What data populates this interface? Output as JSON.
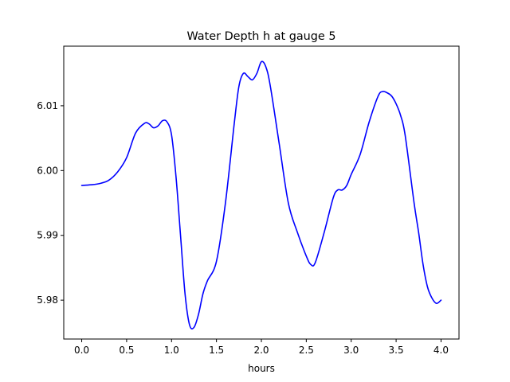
{
  "chart_data": {
    "type": "line",
    "title": "Water Depth h at gauge 5",
    "xlabel": "hours",
    "ylabel": "",
    "xlim": [
      -0.2,
      4.2
    ],
    "ylim": [
      5.974,
      6.0192
    ],
    "xticks": [
      0.0,
      0.5,
      1.0,
      1.5,
      2.0,
      2.5,
      3.0,
      3.5,
      4.0
    ],
    "xtick_labels": [
      "0.0",
      "0.5",
      "1.0",
      "1.5",
      "2.0",
      "2.5",
      "3.0",
      "3.5",
      "4.0"
    ],
    "yticks": [
      5.98,
      5.99,
      6.0,
      6.01
    ],
    "ytick_labels": [
      "5.98",
      "5.99",
      "6.00",
      "6.01"
    ],
    "grid": false,
    "series": [
      {
        "name": "",
        "color": "#0000ff",
        "x": [
          0.0,
          0.1,
          0.2,
          0.3,
          0.4,
          0.5,
          0.6,
          0.7,
          0.75,
          0.8,
          0.85,
          0.9,
          0.95,
          1.0,
          1.05,
          1.1,
          1.15,
          1.2,
          1.25,
          1.3,
          1.35,
          1.4,
          1.5,
          1.6,
          1.7,
          1.75,
          1.8,
          1.85,
          1.9,
          1.95,
          2.0,
          2.05,
          2.1,
          2.2,
          2.3,
          2.4,
          2.5,
          2.55,
          2.6,
          2.7,
          2.8,
          2.85,
          2.9,
          2.95,
          3.0,
          3.1,
          3.2,
          3.3,
          3.35,
          3.4,
          3.45,
          3.5,
          3.55,
          3.6,
          3.7,
          3.75,
          3.8,
          3.85,
          3.9,
          3.95,
          4.0
        ],
        "y": [
          5.9977,
          5.9978,
          5.998,
          5.9985,
          5.9998,
          6.002,
          6.0058,
          6.0073,
          6.0072,
          6.0066,
          6.0069,
          6.0077,
          6.0075,
          6.0055,
          5.999,
          5.99,
          5.981,
          5.9762,
          5.9758,
          5.9778,
          5.981,
          5.983,
          5.986,
          5.995,
          6.0075,
          6.013,
          6.015,
          6.0145,
          6.014,
          6.015,
          6.0168,
          6.016,
          6.013,
          6.004,
          5.995,
          5.9905,
          5.9868,
          5.9855,
          5.9858,
          5.9905,
          5.9958,
          5.997,
          5.997,
          5.9977,
          5.9994,
          6.0025,
          6.0075,
          6.0115,
          6.0122,
          6.012,
          6.0115,
          6.0103,
          6.0085,
          6.0055,
          5.995,
          5.9905,
          5.9855,
          5.982,
          5.9803,
          5.9795,
          5.98
        ]
      }
    ]
  }
}
